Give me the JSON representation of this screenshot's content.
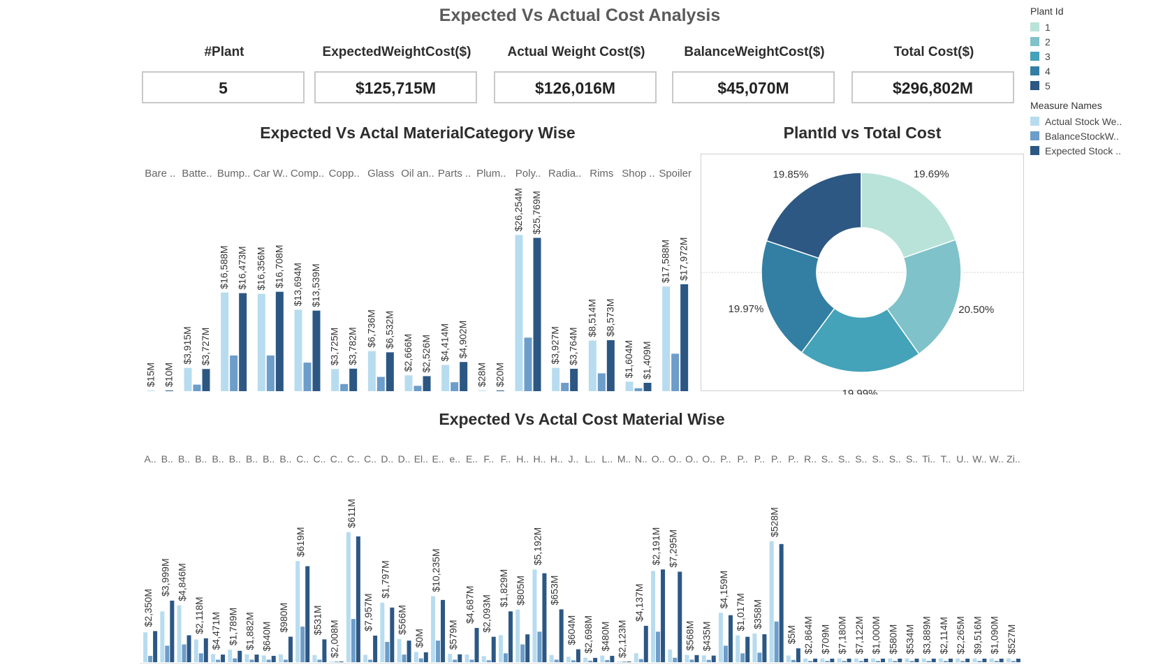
{
  "header": {
    "title": "Expected Vs Actual Cost Analysis"
  },
  "kpis": [
    {
      "label": "#Plant",
      "value": "5"
    },
    {
      "label": "ExpectedWeightCost($)",
      "value": "$125,715M"
    },
    {
      "label": "Actual Weight Cost($)",
      "value": "$126,016M"
    },
    {
      "label": "BalanceWeightCost($)",
      "value": "$45,070M"
    },
    {
      "label": "Total Cost($)",
      "value": "$296,802M"
    }
  ],
  "legend_plant": {
    "title": "Plant Id",
    "items": [
      {
        "label": "1",
        "color": "#b9e3d8"
      },
      {
        "label": "2",
        "color": "#7fc2c9"
      },
      {
        "label": "3",
        "color": "#44a2b9"
      },
      {
        "label": "4",
        "color": "#327fa3"
      },
      {
        "label": "5",
        "color": "#2c5883"
      }
    ]
  },
  "legend_measure": {
    "title": "Measure Names",
    "items": [
      {
        "label": "Actual Stock We..",
        "color": "#b8dcef"
      },
      {
        "label": "BalanceStockW..",
        "color": "#6d9dc9"
      },
      {
        "label": "Expected Stock ..",
        "color": "#2c5783"
      }
    ]
  },
  "chart_data": [
    {
      "type": "bar",
      "title": "Expected Vs Actal MaterialCategory Wise",
      "categories": [
        "Bare ..",
        "Batte..",
        "Bump..",
        "Car W..",
        "Comp..",
        "Copp..",
        "Glass",
        "Oil an..",
        "Parts ..",
        "Plum..",
        "Poly..",
        "Radia..",
        "Rims",
        "Shop ..",
        "Spoiler"
      ],
      "series": [
        {
          "name": "Actual Stock We..",
          "values": [
            15,
            3915,
            16588,
            16356,
            13694,
            3725,
            6736,
            2666,
            4414,
            28,
            26254,
            3927,
            8514,
            1604,
            17588
          ]
        },
        {
          "name": "BalanceStockW..",
          "values": [
            0,
            1100,
            6000,
            6000,
            4800,
            1200,
            2400,
            900,
            1500,
            0,
            9000,
            1400,
            3000,
            500,
            6300
          ]
        },
        {
          "name": "Expected Stock ..",
          "values": [
            10,
            3727,
            16473,
            16708,
            13539,
            3782,
            6532,
            2526,
            4902,
            20,
            25769,
            3764,
            8573,
            1409,
            17972
          ]
        }
      ],
      "data_labels": [
        [
          "$15M",
          "$3,915M",
          "$16,588M",
          "$16,356M",
          "$13,694M",
          "$3,725M",
          "$6,736M",
          "$2,666M",
          "$4,414M",
          "$28M",
          "$26,254M",
          "$3,927M",
          "$8,514M",
          "$1,604M",
          "$17,588M"
        ],
        [
          "",
          "",
          "",
          "",
          "",
          "",
          "",
          "",
          "",
          "",
          "",
          "",
          "",
          "",
          ""
        ],
        [
          "$10M",
          "$3,727M",
          "$16,473M",
          "$16,708M",
          "$13,539M",
          "$3,782M",
          "$6,532M",
          "$2,526M",
          "$4,902M",
          "$20M",
          "$25,769M",
          "$3,764M",
          "$8,573M",
          "$1,409M",
          "$17,972M"
        ]
      ]
    },
    {
      "type": "pie",
      "title": "PlantId vs Total Cost",
      "categories": [
        "1",
        "2",
        "3",
        "4",
        "5"
      ],
      "values": [
        19.69,
        20.5,
        19.99,
        19.97,
        19.85
      ],
      "labels": [
        "19.69%",
        "20.50%",
        "19.99%",
        "19.97%",
        "19.85%"
      ]
    },
    {
      "type": "bar",
      "title": "Expected Vs Actal Cost Material Wise",
      "categories": [
        "A..",
        "B..",
        "B..",
        "B..",
        "B..",
        "B..",
        "B..",
        "B..",
        "B..",
        "C..",
        "C..",
        "C..",
        "C..",
        "C..",
        "D..",
        "D..",
        "El..",
        "E..",
        "e..",
        "E..",
        "F..",
        "F..",
        "H..",
        "H..",
        "H..",
        "J..",
        "L..",
        "L..",
        "M..",
        "N..",
        "O..",
        "O..",
        "O..",
        "O..",
        "P..",
        "P..",
        "P..",
        "P..",
        "P..",
        "R..",
        "S..",
        "S..",
        "S..",
        "S..",
        "S..",
        "S..",
        "Ti..",
        "T..",
        "U..",
        "W..",
        "W..",
        "Zi.."
      ],
      "series": [
        {
          "name": "Actual Stock We..",
          "values": [
            2350,
            3999,
            4471,
            1789,
            640,
            980,
            619,
            531,
            611,
            7957,
            566,
            10,
            10235,
            579,
            4687,
            1829,
            805,
            5192,
            653,
            604,
            480,
            2123,
            4137,
            7295,
            568,
            435,
            358,
            528,
            5,
            709,
            7180,
            1000,
            580,
            534,
            3889,
            2114,
            2265,
            9516,
            527,
            300,
            300,
            300,
            300,
            300,
            300,
            300,
            300,
            300,
            300,
            300,
            300,
            300
          ]
        },
        {
          "name": "BalanceStockW..",
          "values": [
            500,
            1300,
            1400,
            700,
            200,
            300,
            200,
            200,
            200,
            2800,
            200,
            5,
            3400,
            200,
            1600,
            600,
            300,
            1700,
            200,
            200,
            150,
            700,
            1400,
            2400,
            200,
            150,
            120,
            170,
            2,
            250,
            2400,
            350,
            200,
            180,
            1300,
            700,
            750,
            3200,
            180,
            100,
            100,
            100,
            100,
            100,
            100,
            100,
            100,
            100,
            100,
            100,
            100,
            100
          ]
        },
        {
          "name": "Expected Stock ..",
          "values": [
            2450,
            4846,
            2118,
            1882,
            600,
            900,
            600,
            500,
            2008,
            7557,
            1797,
            8,
            9900,
            2093,
            4300,
            1700,
            780,
            4900,
            620,
            2698,
            2000,
            4000,
            2191,
            7000,
            4159,
            1017,
            340,
            500,
            4,
            2864,
            7300,
            7122,
            560,
            520,
            3700,
            2000,
            2200,
            9300,
            1090,
            280,
            280,
            280,
            280,
            280,
            280,
            280,
            280,
            280,
            280,
            280,
            280,
            280
          ]
        }
      ],
      "data_labels": [
        "$2,350M",
        "$3,999M",
        "$4,846M",
        "$2,118M",
        "$4,471M",
        "$1,789M",
        "$1,882M",
        "$640M",
        "$980M",
        "$619M",
        "$531M",
        "$2,008M",
        "$611M",
        "$7,957M",
        "$1,797M",
        "$566M",
        "$0M",
        "$10,235M",
        "$579M",
        "$4,687M",
        "$2,093M",
        "$1,829M",
        "$805M",
        "$5,192M",
        "$653M",
        "$604M",
        "$2,698M",
        "$480M",
        "$2,123M",
        "$4,137M",
        "$2,191M",
        "$7,295M",
        "$568M",
        "$435M",
        "$4,159M",
        "$1,017M",
        "$358M",
        "$528M",
        "$5M",
        "$2,864M",
        "$709M",
        "$7,180M",
        "$7,122M",
        "$1,000M",
        "$580M",
        "$534M",
        "$3,889M",
        "$2,114M",
        "$2,265M",
        "$9,516M",
        "$1,090M",
        "$527M"
      ]
    }
  ]
}
